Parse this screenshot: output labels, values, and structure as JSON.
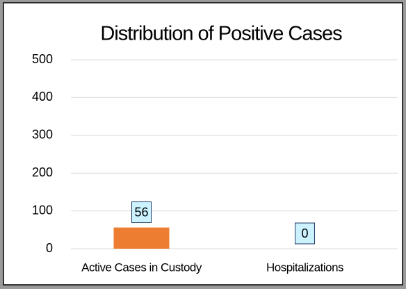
{
  "chart_data": {
    "type": "bar",
    "title": "Distribution of Positive Cases",
    "categories": [
      "Active Cases in Custody",
      "Hospitalizations"
    ],
    "values": [
      56,
      0
    ],
    "color": "#ed7d31",
    "ylim": [
      0,
      500
    ],
    "yticks": [
      0,
      100,
      200,
      300,
      400,
      500
    ],
    "grid": true
  }
}
